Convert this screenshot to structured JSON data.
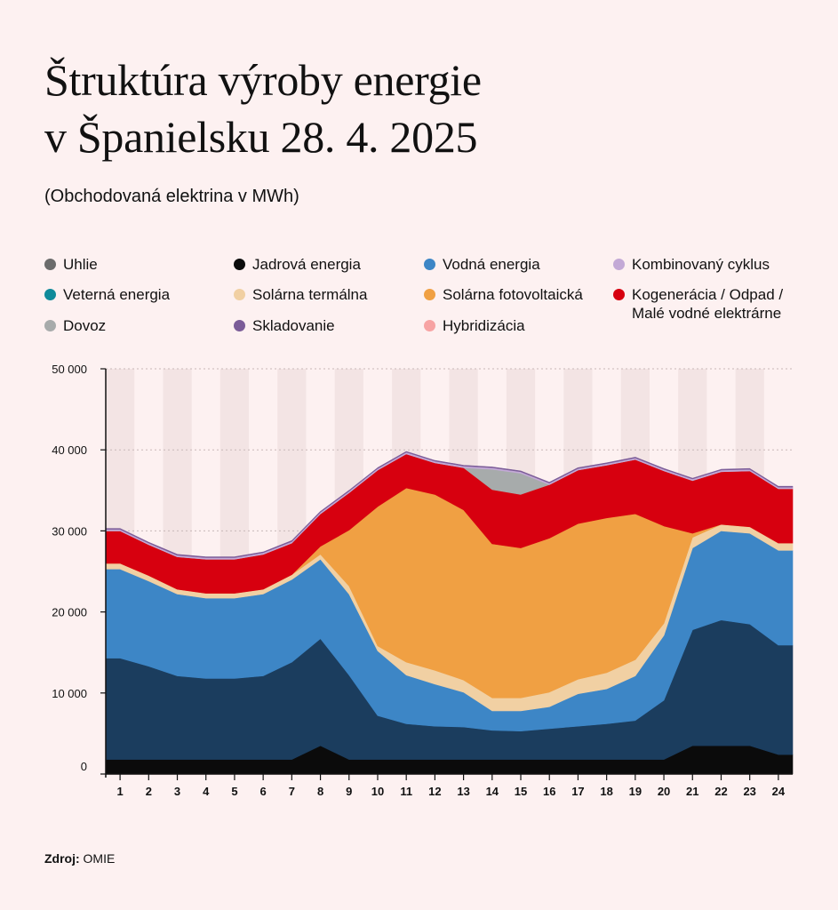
{
  "header": {
    "title_line1": "Štruktúra výroby energie",
    "title_line2": "v Španielsku 28. 4. 2025",
    "subtitle": "(Obchodovaná elektrina v MWh)"
  },
  "legend": [
    {
      "label": "Uhlie",
      "color": "#6b6b6b"
    },
    {
      "label": "Jadrová energia",
      "color": "#0b0b0b"
    },
    {
      "label": "Vodná energia",
      "color": "#3d86c6"
    },
    {
      "label": "Kombinovaný cyklus",
      "color": "#c3a9d6"
    },
    {
      "label": "Veterná energia",
      "color": "#0f8a9a"
    },
    {
      "label": "Solárna termálna",
      "color": "#f1d0a3"
    },
    {
      "label": "Solárna fotovoltaická",
      "color": "#f0a043"
    },
    {
      "label": "Kogenerácia / Odpad / Malé vodné elektrárne",
      "color": "#d7000f"
    },
    {
      "label": "Dovoz",
      "color": "#a7abab"
    },
    {
      "label": "Skladovanie",
      "color": "#7b5c98"
    },
    {
      "label": "Hybridizácia",
      "color": "#f7a3a3"
    }
  ],
  "source": {
    "label": "Zdroj:",
    "value": "OMIE"
  },
  "chart_data": {
    "type": "area",
    "stacked": true,
    "x": [
      1,
      2,
      3,
      4,
      5,
      6,
      7,
      8,
      9,
      10,
      11,
      12,
      13,
      14,
      15,
      16,
      17,
      18,
      19,
      20,
      21,
      22,
      23,
      24
    ],
    "ylim": [
      0,
      50000
    ],
    "yticks": [
      0,
      10000,
      20000,
      30000,
      40000,
      50000
    ],
    "ytick_labels": [
      "0",
      "10 000",
      "20 000",
      "30 000",
      "40 000",
      "50 000"
    ],
    "grid": true,
    "series": [
      {
        "name": "Jadrová energia",
        "color": "#0b0b0b",
        "values": [
          1800,
          1800,
          1800,
          1800,
          1800,
          1800,
          1800,
          3500,
          1800,
          1800,
          1800,
          1800,
          1800,
          1800,
          1800,
          1800,
          1800,
          1800,
          1800,
          1800,
          3500,
          3500,
          3500,
          2400
        ]
      },
      {
        "name": "Veterná energia",
        "color": "#1b3d5e",
        "values": [
          12500,
          11500,
          10300,
          10000,
          10000,
          10300,
          12000,
          13200,
          10400,
          5400,
          4400,
          4100,
          4000,
          3600,
          3500,
          3800,
          4100,
          4400,
          4800,
          7300,
          14300,
          15500,
          15000,
          13500
        ]
      },
      {
        "name": "Vodná energia",
        "color": "#3d86c6",
        "values": [
          11000,
          10500,
          10100,
          9900,
          9900,
          10100,
          10200,
          9800,
          10000,
          8000,
          6000,
          5200,
          4300,
          2400,
          2500,
          2700,
          4000,
          4300,
          5500,
          8000,
          10100,
          11000,
          11200,
          11700
        ]
      },
      {
        "name": "Solárna termálna",
        "color": "#f1d0a3",
        "values": [
          700,
          700,
          600,
          600,
          600,
          600,
          600,
          600,
          1000,
          600,
          1600,
          1700,
          1500,
          1600,
          1600,
          1800,
          1800,
          2000,
          2000,
          1500,
          1300,
          800,
          800,
          900
        ]
      },
      {
        "name": "Solárna fotovoltaická",
        "color": "#f0a043",
        "values": [
          0,
          0,
          0,
          0,
          0,
          0,
          0,
          1000,
          6900,
          17200,
          21500,
          21700,
          21000,
          19000,
          18500,
          19000,
          19200,
          19100,
          18000,
          12000,
          500,
          0,
          0,
          0
        ]
      },
      {
        "name": "Kogenerácia / Odpad / Malé vodné elektrárne",
        "color": "#d7000f",
        "values": [
          4000,
          3800,
          4000,
          4200,
          4200,
          4300,
          3900,
          4000,
          4600,
          4500,
          4200,
          3900,
          5200,
          6700,
          6600,
          6600,
          6600,
          6500,
          6700,
          6800,
          6500,
          6500,
          6900,
          6700
        ]
      },
      {
        "name": "Dovoz",
        "color": "#a7abab",
        "values": [
          0,
          0,
          0,
          0,
          0,
          0,
          0,
          0,
          0,
          0,
          0,
          0,
          0,
          2500,
          2600,
          0,
          0,
          0,
          0,
          0,
          0,
          0,
          0,
          0
        ]
      },
      {
        "name": "Kombinovaný cyklus",
        "color": "#c3a9d6",
        "values": [
          200,
          200,
          200,
          200,
          200,
          200,
          200,
          200,
          200,
          200,
          200,
          200,
          200,
          200,
          200,
          200,
          200,
          200,
          200,
          200,
          200,
          200,
          200,
          200
        ]
      },
      {
        "name": "Skladovanie",
        "color": "#7b5c98",
        "values": [
          100,
          100,
          100,
          100,
          100,
          100,
          100,
          100,
          100,
          100,
          100,
          100,
          100,
          100,
          100,
          100,
          100,
          100,
          100,
          100,
          100,
          100,
          100,
          100
        ]
      }
    ]
  }
}
